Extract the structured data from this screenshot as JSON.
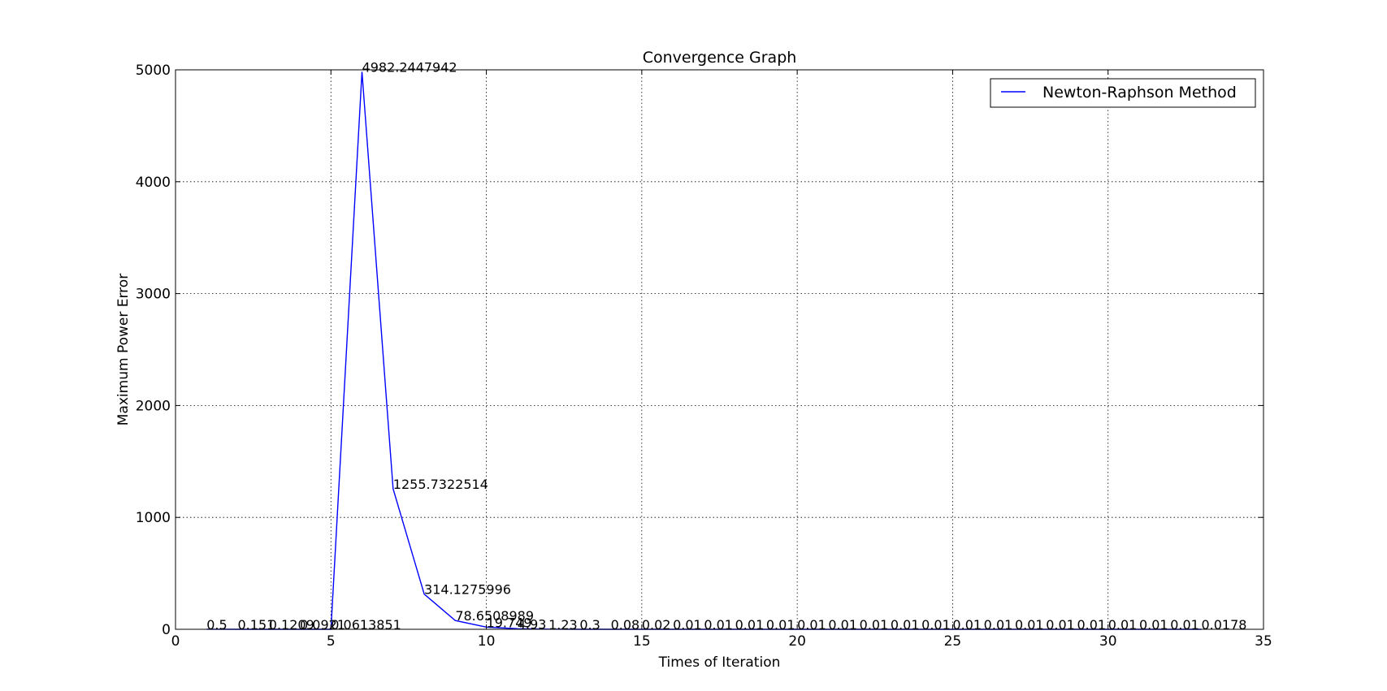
{
  "chart_data": {
    "type": "line",
    "title": "Convergence Graph",
    "xlabel": "Times of Iteration",
    "ylabel": "Maximum Power Error",
    "xlim": [
      0,
      35
    ],
    "ylim": [
      0,
      5000
    ],
    "xticks": [
      0,
      5,
      10,
      15,
      20,
      25,
      30,
      35
    ],
    "yticks": [
      0,
      1000,
      2000,
      3000,
      4000,
      5000
    ],
    "grid": true,
    "legend_position": "top-right",
    "series": [
      {
        "name": "Newton-Raphson Method",
        "color": "#0000ff",
        "x": [
          1,
          2,
          3,
          4,
          5,
          6,
          7,
          8,
          9,
          10,
          11,
          12,
          13,
          14,
          15,
          16,
          17,
          18,
          19,
          20,
          21,
          22,
          23,
          24,
          25,
          26,
          27,
          28,
          29,
          30,
          31,
          32,
          33
        ],
        "y": [
          0.5,
          0.151,
          0.1209,
          0.0921,
          0.0613851,
          4982.2447942,
          1255.7322514,
          314.1275996,
          78.6508989,
          19.749,
          4.93,
          1.23,
          0.3,
          0.08,
          0.02,
          0.01,
          0.01,
          0.01,
          0.01,
          0.01,
          0.01,
          0.01,
          0.01,
          0.01,
          0.01,
          0.01,
          0.01,
          0.01,
          0.01,
          0.01,
          0.01,
          0.01,
          0.0178
        ],
        "labels": [
          "0.5",
          "0.151",
          "0.1209",
          "0.0921",
          "0.0613851",
          "4982.2447942",
          "1255.7322514",
          "314.1275996",
          "78.6508989",
          "19.749",
          "4.93",
          "1.23",
          "0.3",
          "0.08",
          "0.02",
          "0.01",
          "0.01",
          "0.01",
          "0.01",
          "0.01",
          "0.01",
          "0.01",
          "0.01",
          "0.01",
          "0.01",
          "0.01",
          "0.01",
          "0.01",
          "0.01",
          "0.01",
          "0.01",
          "0.01",
          "0.0178"
        ]
      }
    ]
  }
}
